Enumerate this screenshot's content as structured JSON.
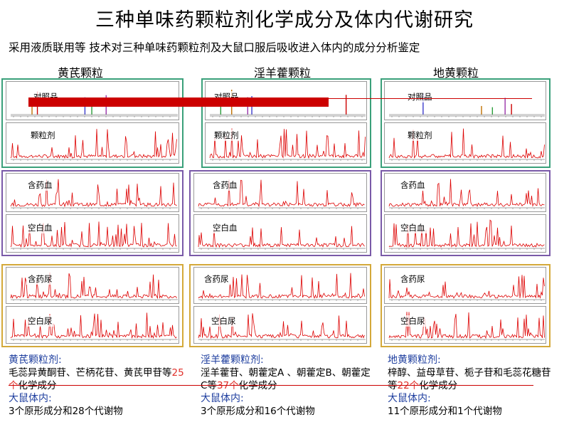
{
  "title": "三种单味药颗粒剂化学成分及体内代谢研究",
  "subtitle": "采用液质联用等 技术对三种单味药颗粒剂及大鼠口服后吸收进入体内的成分分析鉴定",
  "columns": [
    {
      "heading": "黄芪颗粒",
      "labels": [
        "对照品",
        "颗粒剂",
        "含药血",
        "空白血",
        "含药尿",
        "空白尿"
      ],
      "summary": {
        "granule_title": "黄芪颗粒剂:",
        "granule_text_before": "毛蕊异黄酮苷、芒柄花苷、黄芪甲苷等",
        "count": "25个",
        "granule_text_after": "化学成分",
        "rat_title": "大鼠体内:",
        "rat_text": "3个原形成分和28个代谢物"
      }
    },
    {
      "heading": "淫羊藿颗粒",
      "labels": [
        "对照品",
        "颗粒剂",
        "含药血",
        "空白血",
        "含药尿",
        "空白尿"
      ],
      "summary": {
        "granule_title": "淫羊藿颗粒剂:",
        "granule_text_before": "淫羊藿苷、朝藿定A 、朝藿定B、朝藿定C等",
        "count": "37个",
        "granule_text_after": "化学成分",
        "rat_title": "大鼠体内:",
        "rat_text": "3个原形成分和16个代谢物"
      }
    },
    {
      "heading": "地黄颗粒",
      "labels": [
        "对照品",
        "颗粒剂",
        "含药血",
        "空白血",
        "含药尿",
        "空白尿"
      ],
      "summary": {
        "granule_title": "地黄颗粒剂:",
        "granule_text_before": "梓醇、益母草苷、栀子苷和毛蕊花糖苷等",
        "count": "22个",
        "granule_text_after": "化学成分",
        "rat_title": "大鼠体内:",
        "rat_text": "11个原形成分和1个代谢物"
      }
    }
  ],
  "colors": {
    "trace": "#dd0000",
    "green_frame": "#3aa07a",
    "purple_frame": "#7a5aa8",
    "gold_frame": "#d4a93a",
    "summary_heading": "#1f3f9f",
    "highlight": "#e0302a"
  }
}
